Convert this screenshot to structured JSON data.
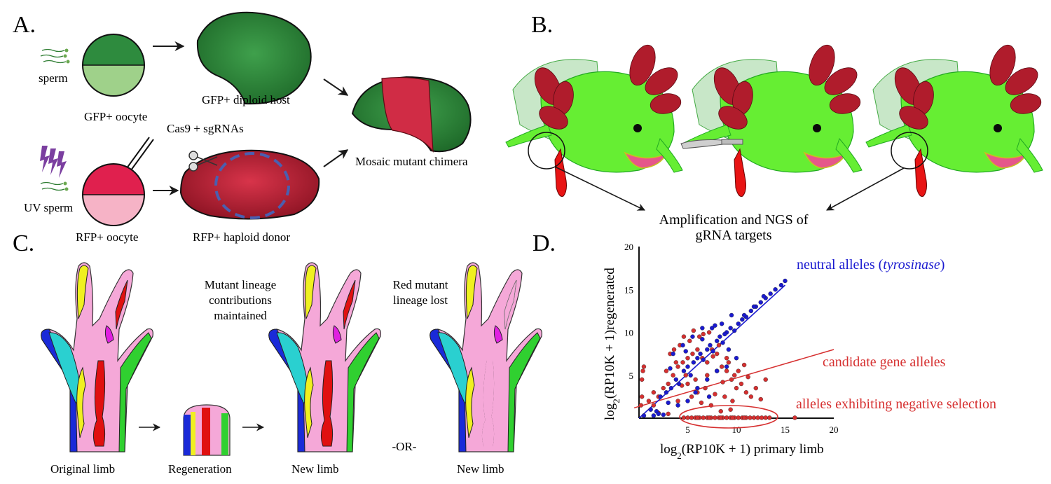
{
  "panels": {
    "a": {
      "letter": "A.",
      "sperm_label": "sperm",
      "uv_sperm_label": "UV sperm",
      "gfp_oocyte_label": "GFP+ oocyte",
      "gfp_host_label": "GFP+ diploid host",
      "injection_label": "Cas9 + sgRNAs",
      "rfp_oocyte_label": "RFP+ oocyte",
      "rfp_donor_label": "RFP+ haploid donor",
      "chimera_label": "Mosaic mutant chimera"
    },
    "b": {
      "letter": "B.",
      "ngs_label_line1": "Amplification and NGS of",
      "ngs_label_line2": "gRNA targets"
    },
    "c": {
      "letter": "C.",
      "original_label": "Original limb",
      "regeneration_label": "Regeneration",
      "new_limb_label_1": "New limb",
      "new_limb_label_2": "New limb",
      "or_label": "-OR-",
      "maintained_line1": "Mutant lineage",
      "maintained_line2": "contributions",
      "maintained_line3": "maintained",
      "lost_line1": "Red mutant",
      "lost_line2": "lineage lost"
    },
    "d": {
      "letter": "D."
    }
  },
  "colors": {
    "gfp_dark": "#2e8b3e",
    "gfp_light": "#9fd18a",
    "rfp_dark": "#e0204e",
    "rfp_light": "#f6b3c6",
    "axolotl_green": "#66ee33",
    "gill_red": "#b01c2c",
    "neutral_blue": "#1a1ad0",
    "candidate_red": "#d63030",
    "limb_pink": "#f5a8d8",
    "limb_blue": "#1a2ad8",
    "limb_cyan": "#2ad0d0",
    "limb_yellow": "#f0f020",
    "limb_green": "#30d030",
    "limb_red": "#e01010",
    "limb_magenta": "#e020e0"
  },
  "chart_data": {
    "type": "scatter",
    "xlabel": "log2(RP10K + 1) primary limb",
    "ylabel": "log2(RP10K + 1)regenerated",
    "xlim": [
      0,
      20
    ],
    "ylim": [
      0,
      20
    ],
    "xticks": [
      5,
      10,
      15,
      20
    ],
    "yticks": [
      5,
      10,
      15,
      20
    ],
    "annotations": {
      "neutral_prefix": "neutral alleles (",
      "neutral_italic": "tyrosinase",
      "neutral_suffix": ")",
      "candidate": "candidate gene alleles",
      "negative": "alleles exhibiting negative selection"
    },
    "series": [
      {
        "id": "neutral",
        "color": "#1a1ad0",
        "fit": {
          "x0": 0,
          "y0": 0,
          "x1": 15,
          "y1": 15.5
        },
        "x": [
          0.5,
          1.2,
          1.8,
          2.2,
          2.8,
          3.3,
          3.8,
          4.1,
          4.6,
          5.0,
          5.3,
          5.6,
          6.0,
          6.3,
          6.6,
          7.0,
          7.3,
          7.6,
          8.0,
          8.3,
          8.6,
          9.0,
          9.4,
          9.8,
          10.2,
          10.6,
          11.0,
          11.5,
          12.0,
          12.5,
          13.0,
          13.5,
          14.0,
          14.6,
          15.0,
          3.5,
          4.5,
          5.5,
          6.5,
          7.5,
          8.5,
          9.5,
          5.0,
          6.0,
          7.0,
          8.0,
          9.0,
          10.0,
          4.0,
          3.0,
          2.0,
          6.5,
          7.8,
          8.8,
          10.8,
          11.8,
          12.8,
          3.2,
          5.8,
          9.2,
          4.8,
          7.2,
          2.5,
          1.5
        ],
        "y": [
          0.3,
          1.0,
          0.8,
          2.5,
          3.0,
          3.5,
          4.5,
          4.0,
          5.5,
          6.0,
          5.0,
          6.5,
          7.0,
          7.5,
          6.8,
          8.0,
          8.5,
          7.8,
          9.0,
          9.5,
          8.8,
          10.0,
          10.5,
          10.2,
          11.0,
          11.5,
          11.8,
          12.5,
          13.0,
          13.5,
          14.0,
          14.5,
          15.0,
          15.5,
          16.0,
          7.5,
          8.5,
          9.5,
          9.2,
          10.5,
          11.0,
          12.0,
          2.0,
          3.5,
          4.5,
          5.5,
          6.0,
          7.0,
          1.5,
          1.8,
          0.5,
          10.5,
          10.8,
          9.8,
          12.0,
          13.0,
          14.2,
          5.8,
          3.0,
          8.0,
          7.8,
          2.5,
          0.4,
          0.3
        ]
      },
      {
        "id": "candidate",
        "color": "#d63030",
        "fit": {
          "x0": -0.5,
          "y0": 1.2,
          "x1": 20,
          "y1": 8.0
        },
        "x": [
          0.2,
          0.3,
          0.4,
          0.5,
          0.3,
          1.0,
          1.5,
          2.0,
          2.5,
          3.0,
          3.5,
          4.0,
          4.5,
          5.0,
          5.5,
          6.0,
          6.5,
          7.0,
          7.5,
          8.0,
          8.5,
          9.0,
          9.5,
          10.0,
          10.5,
          11.0,
          11.5,
          12.0,
          3.2,
          4.2,
          5.2,
          6.2,
          7.2,
          8.2,
          9.2,
          10.2,
          11.2,
          2.8,
          3.8,
          4.8,
          5.8,
          6.8,
          7.8,
          8.8,
          9.8,
          10.8,
          4.4,
          5.4,
          6.4,
          7.4,
          8.4,
          9.4,
          3.6,
          4.6,
          5.6,
          6.6,
          7.6,
          8.6,
          9.6,
          12.5,
          13.0,
          5.0,
          6.0,
          7.0,
          8.0,
          2.0,
          3.0,
          1.5,
          4.0,
          9.0
        ],
        "y": [
          1.5,
          4.5,
          5.5,
          6.0,
          2.5,
          2.0,
          1.5,
          2.5,
          3.5,
          4.0,
          5.0,
          6.0,
          6.5,
          7.0,
          7.5,
          8.0,
          7.0,
          6.5,
          8.0,
          7.5,
          6.0,
          5.5,
          4.5,
          3.5,
          4.0,
          3.0,
          2.5,
          3.5,
          7.5,
          8.5,
          9.0,
          9.5,
          10.0,
          8.5,
          6.5,
          5.5,
          4.8,
          5.5,
          6.5,
          5.0,
          4.5,
          3.5,
          2.8,
          2.5,
          5.0,
          6.2,
          3.8,
          2.5,
          1.8,
          1.5,
          0.8,
          1.0,
          8.0,
          9.5,
          10.2,
          9.8,
          7.2,
          4.2,
          2.0,
          2.2,
          4.5,
          4.0,
          3.0,
          5.0,
          5.5,
          0.6,
          0.5,
          3.0,
          2.0,
          7.0
        ]
      },
      {
        "id": "negative",
        "color": "#d63030",
        "x": [
          4.6,
          5.0,
          5.4,
          5.8,
          6.2,
          6.6,
          7.0,
          7.4,
          7.8,
          8.2,
          8.6,
          9.0,
          9.4,
          9.8,
          10.2,
          10.6,
          11.0,
          11.4,
          11.8,
          12.2,
          12.6,
          13.0,
          13.4,
          6.0,
          7.2,
          8.4,
          9.6,
          10.8,
          16.0
        ],
        "y": [
          0.05,
          0.05,
          0.05,
          0.05,
          0.05,
          0.05,
          0.05,
          0.05,
          0.05,
          0.05,
          0.05,
          0.05,
          0.05,
          0.05,
          0.05,
          0.05,
          0.05,
          0.05,
          0.05,
          0.05,
          0.05,
          0.05,
          0.05,
          0.05,
          0.05,
          0.05,
          0.05,
          0.05,
          0.05
        ]
      }
    ]
  }
}
